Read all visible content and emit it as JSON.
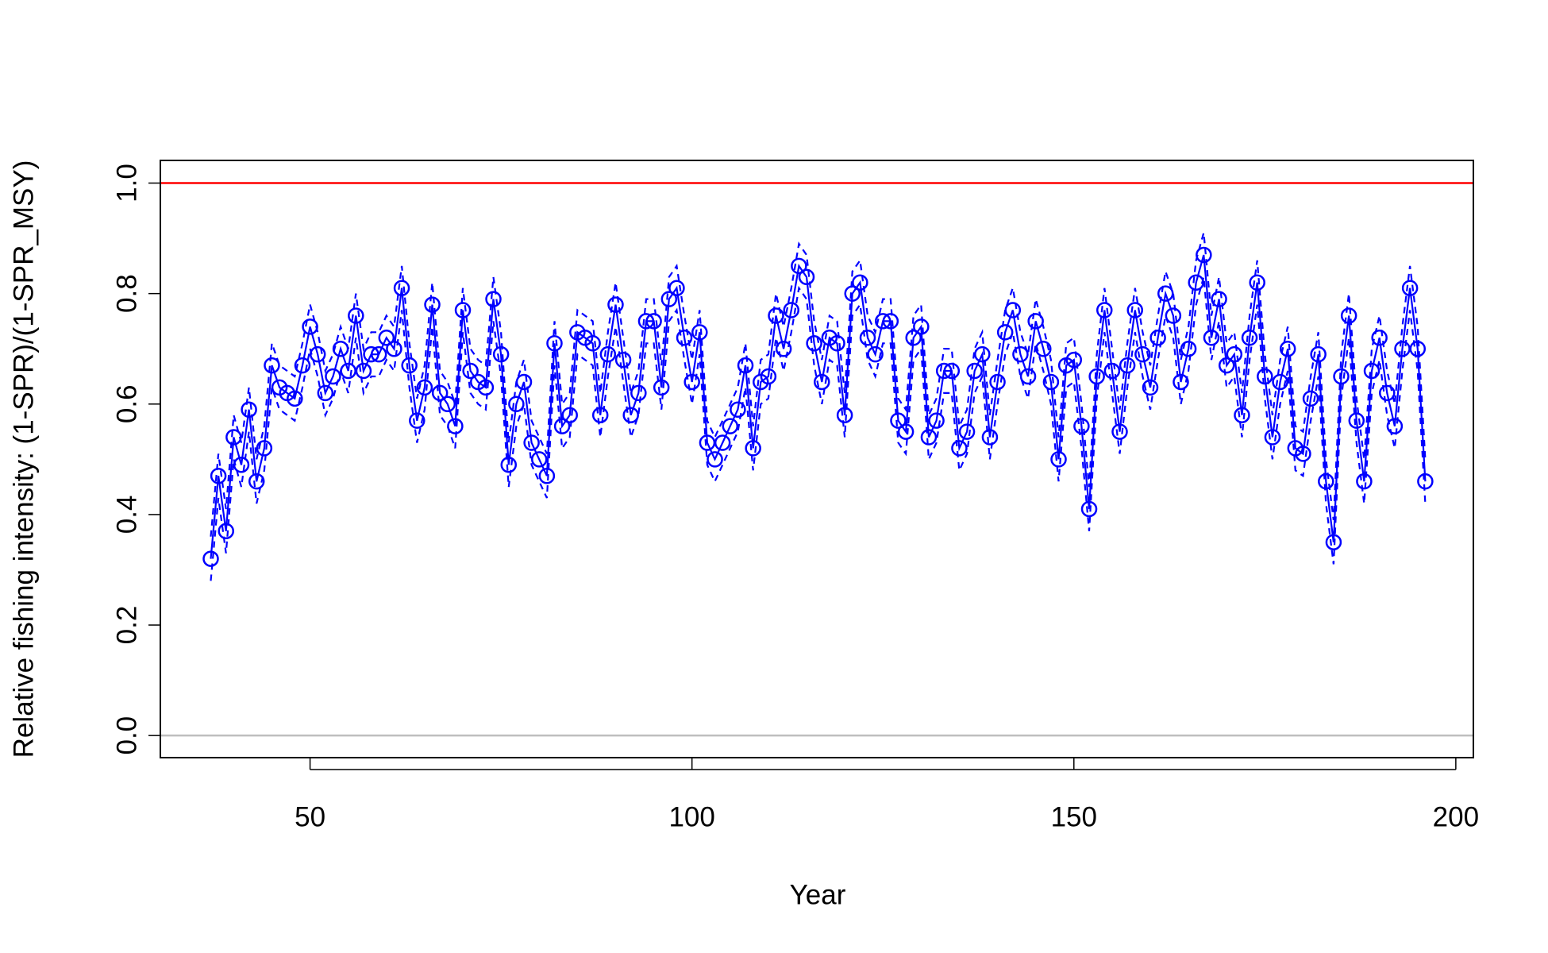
{
  "chart_data": {
    "type": "line",
    "xlabel": "Year",
    "ylabel": "Relative fishing intensity: (1-SPR)/(1-SPR_MSY)",
    "x": [
      37,
      38,
      39,
      40,
      41,
      42,
      43,
      44,
      45,
      46,
      47,
      48,
      49,
      50,
      51,
      52,
      53,
      54,
      55,
      56,
      57,
      58,
      59,
      60,
      61,
      62,
      63,
      64,
      65,
      66,
      67,
      68,
      69,
      70,
      71,
      72,
      73,
      74,
      75,
      76,
      77,
      78,
      79,
      80,
      81,
      82,
      83,
      84,
      85,
      86,
      87,
      88,
      89,
      90,
      91,
      92,
      93,
      94,
      95,
      96,
      97,
      98,
      99,
      100,
      101,
      102,
      103,
      104,
      105,
      106,
      107,
      108,
      109,
      110,
      111,
      112,
      113,
      114,
      115,
      116,
      117,
      118,
      119,
      120,
      121,
      122,
      123,
      124,
      125,
      126,
      127,
      128,
      129,
      130,
      131,
      132,
      133,
      134,
      135,
      136,
      137,
      138,
      139,
      140,
      141,
      142,
      143,
      144,
      145,
      146,
      147,
      148,
      149,
      150,
      151,
      152,
      153,
      154,
      155,
      156,
      157,
      158,
      159,
      160,
      161,
      162,
      163,
      164,
      165,
      166,
      167,
      168,
      169,
      170,
      171,
      172,
      173,
      174,
      175,
      176,
      177,
      178,
      179,
      180,
      181,
      182,
      183,
      184,
      185,
      186,
      187,
      188,
      189,
      190,
      191,
      192,
      193,
      194,
      195,
      196
    ],
    "series": [
      {
        "color": "#0000ff",
        "values": [
          0.32,
          0.47,
          0.37,
          0.54,
          0.49,
          0.59,
          0.46,
          0.52,
          0.67,
          0.63,
          0.62,
          0.61,
          0.67,
          0.74,
          0.69,
          0.62,
          0.65,
          0.7,
          0.66,
          0.76,
          0.66,
          0.69,
          0.69,
          0.72,
          0.7,
          0.81,
          0.67,
          0.57,
          0.63,
          0.78,
          0.62,
          0.6,
          0.56,
          0.77,
          0.66,
          0.64,
          0.63,
          0.79,
          0.69,
          0.49,
          0.6,
          0.64,
          0.53,
          0.5,
          0.47,
          0.71,
          0.56,
          0.58,
          0.73,
          0.72,
          0.71,
          0.58,
          0.69,
          0.78,
          0.68,
          0.58,
          0.62,
          0.75,
          0.75,
          0.63,
          0.79,
          0.81,
          0.72,
          0.64,
          0.73,
          0.53,
          0.5,
          0.53,
          0.56,
          0.59,
          0.67,
          0.52,
          0.64,
          0.65,
          0.76,
          0.7,
          0.77,
          0.85,
          0.83,
          0.71,
          0.64,
          0.72,
          0.71,
          0.58,
          0.8,
          0.82,
          0.72,
          0.69,
          0.75,
          0.75,
          0.57,
          0.55,
          0.72,
          0.74,
          0.54,
          0.57,
          0.66,
          0.66,
          0.52,
          0.55,
          0.66,
          0.69,
          0.54,
          0.64,
          0.73,
          0.77,
          0.69,
          0.65,
          0.75,
          0.7,
          0.64,
          0.5,
          0.67,
          0.68,
          0.56,
          0.41,
          0.65,
          0.77,
          0.66,
          0.55,
          0.67,
          0.77,
          0.69,
          0.63,
          0.72,
          0.8,
          0.76,
          0.64,
          0.7,
          0.82,
          0.87,
          0.72,
          0.79,
          0.67,
          0.69,
          0.58,
          0.72,
          0.82,
          0.65,
          0.54,
          0.64,
          0.7,
          0.52,
          0.51,
          0.61,
          0.69,
          0.46,
          0.35,
          0.65,
          0.76,
          0.57,
          0.46,
          0.66,
          0.72,
          0.62,
          0.56,
          0.7,
          0.81,
          0.7,
          0.46
        ],
        "lower": [
          0.28,
          0.43,
          0.33,
          0.5,
          0.45,
          0.55,
          0.42,
          0.48,
          0.63,
          0.59,
          0.58,
          0.57,
          0.63,
          0.7,
          0.65,
          0.58,
          0.61,
          0.66,
          0.62,
          0.72,
          0.62,
          0.65,
          0.65,
          0.68,
          0.66,
          0.77,
          0.63,
          0.53,
          0.59,
          0.74,
          0.58,
          0.56,
          0.52,
          0.73,
          0.62,
          0.6,
          0.59,
          0.75,
          0.65,
          0.45,
          0.56,
          0.6,
          0.49,
          0.46,
          0.43,
          0.67,
          0.52,
          0.54,
          0.69,
          0.68,
          0.67,
          0.54,
          0.65,
          0.74,
          0.64,
          0.54,
          0.58,
          0.71,
          0.71,
          0.59,
          0.75,
          0.77,
          0.68,
          0.6,
          0.69,
          0.49,
          0.46,
          0.49,
          0.52,
          0.55,
          0.63,
          0.48,
          0.6,
          0.61,
          0.72,
          0.66,
          0.73,
          0.81,
          0.79,
          0.67,
          0.6,
          0.68,
          0.67,
          0.54,
          0.76,
          0.78,
          0.68,
          0.65,
          0.71,
          0.71,
          0.53,
          0.51,
          0.68,
          0.7,
          0.5,
          0.53,
          0.62,
          0.62,
          0.48,
          0.51,
          0.62,
          0.65,
          0.5,
          0.6,
          0.69,
          0.73,
          0.65,
          0.61,
          0.71,
          0.66,
          0.6,
          0.46,
          0.63,
          0.64,
          0.52,
          0.37,
          0.61,
          0.73,
          0.62,
          0.51,
          0.63,
          0.73,
          0.65,
          0.59,
          0.68,
          0.76,
          0.72,
          0.6,
          0.66,
          0.78,
          0.83,
          0.68,
          0.75,
          0.63,
          0.65,
          0.54,
          0.68,
          0.78,
          0.61,
          0.5,
          0.6,
          0.66,
          0.48,
          0.47,
          0.57,
          0.65,
          0.42,
          0.31,
          0.61,
          0.72,
          0.53,
          0.42,
          0.62,
          0.68,
          0.58,
          0.52,
          0.66,
          0.77,
          0.66,
          0.42
        ],
        "upper": [
          0.36,
          0.51,
          0.41,
          0.58,
          0.53,
          0.63,
          0.5,
          0.56,
          0.71,
          0.67,
          0.66,
          0.65,
          0.71,
          0.78,
          0.73,
          0.66,
          0.69,
          0.74,
          0.7,
          0.8,
          0.7,
          0.73,
          0.73,
          0.76,
          0.74,
          0.85,
          0.71,
          0.61,
          0.67,
          0.82,
          0.66,
          0.64,
          0.6,
          0.81,
          0.7,
          0.68,
          0.67,
          0.83,
          0.73,
          0.53,
          0.64,
          0.68,
          0.57,
          0.54,
          0.51,
          0.75,
          0.6,
          0.62,
          0.77,
          0.76,
          0.75,
          0.62,
          0.73,
          0.82,
          0.72,
          0.62,
          0.66,
          0.79,
          0.79,
          0.67,
          0.83,
          0.85,
          0.76,
          0.68,
          0.77,
          0.57,
          0.54,
          0.57,
          0.6,
          0.63,
          0.71,
          0.56,
          0.68,
          0.69,
          0.8,
          0.74,
          0.81,
          0.89,
          0.87,
          0.75,
          0.68,
          0.76,
          0.75,
          0.62,
          0.84,
          0.86,
          0.76,
          0.73,
          0.79,
          0.79,
          0.61,
          0.59,
          0.76,
          0.78,
          0.58,
          0.61,
          0.7,
          0.7,
          0.56,
          0.59,
          0.7,
          0.73,
          0.58,
          0.68,
          0.77,
          0.81,
          0.73,
          0.69,
          0.79,
          0.74,
          0.68,
          0.54,
          0.71,
          0.72,
          0.6,
          0.45,
          0.69,
          0.81,
          0.7,
          0.59,
          0.71,
          0.81,
          0.73,
          0.67,
          0.76,
          0.84,
          0.8,
          0.68,
          0.74,
          0.86,
          0.91,
          0.76,
          0.83,
          0.71,
          0.73,
          0.62,
          0.76,
          0.86,
          0.69,
          0.58,
          0.68,
          0.74,
          0.56,
          0.55,
          0.65,
          0.73,
          0.5,
          0.39,
          0.69,
          0.8,
          0.61,
          0.5,
          0.7,
          0.76,
          0.66,
          0.6,
          0.74,
          0.85,
          0.74,
          0.5
        ]
      }
    ],
    "reference_lines": [
      {
        "value": 1,
        "color": "#ff0000"
      },
      {
        "value": 0,
        "color": "#bebebe"
      }
    ],
    "xlim": [
      30.4,
      202.3
    ],
    "xticks": [
      50,
      100,
      150,
      200
    ],
    "ylim": [
      -0.04,
      1.041
    ],
    "yticks": [
      {
        "value": 0,
        "label": "0.0"
      },
      0.2,
      0.4,
      0.6,
      0.8,
      {
        "value": 1,
        "label": "1.0"
      }
    ]
  }
}
